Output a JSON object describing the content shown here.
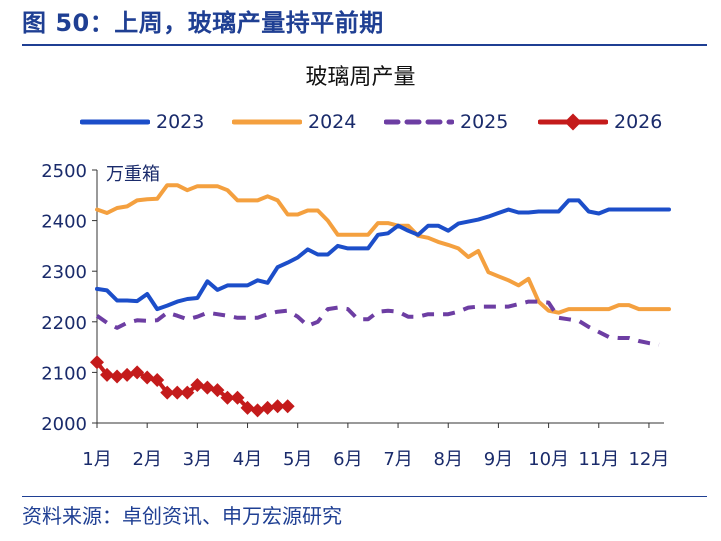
{
  "header": {
    "title": "图 50：上周，玻璃产量持平前期"
  },
  "source": {
    "text": "资料来源：卓创资讯、申万宏源研究"
  },
  "colors": {
    "header_blue": "#1f3f93",
    "series_2023": "#1c4ec9",
    "series_2024": "#f4a03f",
    "series_2025": "#6d3ea3",
    "series_2026": "#c41b1b"
  },
  "chart_data": {
    "type": "line",
    "title": "玻璃周产量",
    "unit_label": "万重箱",
    "xlabel": "",
    "ylabel": "",
    "ylim": [
      2000,
      2500
    ],
    "yticks": [
      2000,
      2100,
      2200,
      2300,
      2400,
      2500
    ],
    "xlim": [
      1,
      12.3
    ],
    "xticks": [
      1,
      2,
      3,
      4,
      5,
      6,
      7,
      8,
      9,
      10,
      11,
      12
    ],
    "xtick_labels": [
      "1月",
      "2月",
      "3月",
      "4月",
      "5月",
      "6月",
      "7月",
      "8月",
      "9月",
      "10月",
      "11月",
      "12月"
    ],
    "grid": false,
    "legend": "top",
    "series": [
      {
        "name": "2023",
        "style": "solid",
        "x": [
          1.0,
          1.2,
          1.4,
          1.6,
          1.8,
          2.0,
          2.2,
          2.4,
          2.6,
          2.8,
          3.0,
          3.2,
          3.4,
          3.6,
          3.8,
          4.0,
          4.2,
          4.4,
          4.6,
          4.8,
          5.0,
          5.2,
          5.4,
          5.6,
          5.8,
          6.0,
          6.2,
          6.4,
          6.6,
          6.8,
          7.0,
          7.2,
          7.4,
          7.6,
          7.8,
          8.0,
          8.2,
          8.4,
          8.6,
          8.8,
          9.0,
          9.2,
          9.4,
          9.6,
          9.8,
          10.0,
          10.2,
          10.4,
          10.6,
          10.8,
          11.0,
          11.2,
          11.4,
          11.6,
          11.8,
          12.0,
          12.2,
          12.4
        ],
        "values": [
          2265,
          2262,
          2242,
          2242,
          2241,
          2255,
          2225,
          2232,
          2240,
          2245,
          2247,
          2280,
          2263,
          2272,
          2272,
          2272,
          2282,
          2277,
          2308,
          2317,
          2327,
          2343,
          2333,
          2333,
          2350,
          2345,
          2345,
          2345,
          2372,
          2375,
          2390,
          2380,
          2372,
          2390,
          2390,
          2380,
          2394,
          2398,
          2402,
          2408,
          2415,
          2422,
          2416,
          2416,
          2418,
          2418,
          2418,
          2440,
          2440,
          2418,
          2414,
          2422,
          2422,
          2422,
          2422,
          2422,
          2422,
          2422
        ]
      },
      {
        "name": "2024",
        "style": "solid",
        "x": [
          1.0,
          1.2,
          1.4,
          1.6,
          1.8,
          2.0,
          2.2,
          2.4,
          2.6,
          2.8,
          3.0,
          3.2,
          3.4,
          3.6,
          3.8,
          4.0,
          4.2,
          4.4,
          4.6,
          4.8,
          5.0,
          5.2,
          5.4,
          5.6,
          5.8,
          6.0,
          6.2,
          6.4,
          6.6,
          6.8,
          7.0,
          7.2,
          7.4,
          7.6,
          7.8,
          8.0,
          8.2,
          8.4,
          8.6,
          8.8,
          9.0,
          9.2,
          9.4,
          9.6,
          9.8,
          10.0,
          10.2,
          10.4,
          10.6,
          10.8,
          11.0,
          11.2,
          11.4,
          11.6,
          11.8,
          12.0,
          12.2,
          12.4
        ],
        "values": [
          2422,
          2415,
          2425,
          2428,
          2440,
          2442,
          2443,
          2470,
          2470,
          2460,
          2468,
          2468,
          2468,
          2460,
          2440,
          2440,
          2440,
          2448,
          2440,
          2412,
          2412,
          2420,
          2420,
          2400,
          2372,
          2372,
          2372,
          2372,
          2395,
          2395,
          2390,
          2390,
          2370,
          2366,
          2358,
          2352,
          2345,
          2328,
          2340,
          2298,
          2290,
          2282,
          2272,
          2285,
          2240,
          2222,
          2218,
          2225,
          2225,
          2225,
          2225,
          2225,
          2233,
          2233,
          2225,
          2225,
          2225,
          2225
        ]
      },
      {
        "name": "2025",
        "style": "dashed",
        "x": [
          1.0,
          1.2,
          1.4,
          1.6,
          1.8,
          2.0,
          2.2,
          2.4,
          2.6,
          2.8,
          3.0,
          3.2,
          3.4,
          3.6,
          3.8,
          4.0,
          4.2,
          4.4,
          4.6,
          4.8,
          5.0,
          5.2,
          5.4,
          5.6,
          5.8,
          6.0,
          6.2,
          6.4,
          6.6,
          6.8,
          7.0,
          7.2,
          7.4,
          7.6,
          7.8,
          8.0,
          8.2,
          8.4,
          8.6,
          8.8,
          9.0,
          9.2,
          9.4,
          9.6,
          9.8,
          10.0,
          10.2,
          10.4,
          10.6,
          10.8,
          11.0,
          11.2,
          11.4,
          11.6,
          11.8,
          12.0,
          12.2
        ],
        "values": [
          2212,
          2198,
          2188,
          2198,
          2203,
          2202,
          2203,
          2218,
          2212,
          2205,
          2210,
          2218,
          2215,
          2212,
          2208,
          2208,
          2208,
          2215,
          2220,
          2222,
          2210,
          2192,
          2200,
          2225,
          2228,
          2225,
          2205,
          2205,
          2220,
          2222,
          2220,
          2210,
          2210,
          2215,
          2215,
          2215,
          2220,
          2228,
          2230,
          2230,
          2230,
          2230,
          2235,
          2240,
          2240,
          2238,
          2208,
          2205,
          2202,
          2190,
          2180,
          2170,
          2168,
          2168,
          2162,
          2158,
          2155
        ]
      },
      {
        "name": "2026",
        "style": "markers",
        "x": [
          1.0,
          1.2,
          1.4,
          1.6,
          1.8,
          2.0,
          2.2,
          2.4,
          2.6,
          2.8,
          3.0,
          3.2,
          3.4,
          3.6,
          3.8,
          4.0,
          4.2,
          4.4,
          4.6,
          4.8
        ],
        "values": [
          2120,
          2095,
          2092,
          2095,
          2100,
          2090,
          2085,
          2060,
          2060,
          2060,
          2075,
          2070,
          2065,
          2050,
          2050,
          2030,
          2025,
          2030,
          2033,
          2033
        ]
      }
    ]
  }
}
